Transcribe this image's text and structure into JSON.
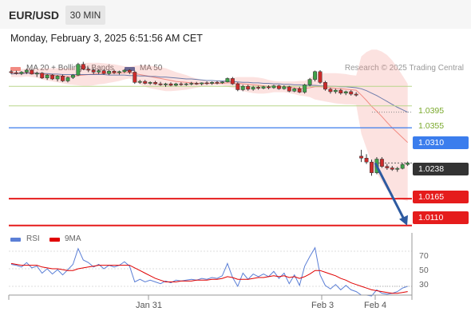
{
  "header": {
    "pair": "EUR/USD",
    "timeframe": "30 MIN",
    "datetime": "Monday, February 3, 2025 6:51:56 AM CET"
  },
  "legend": {
    "bollinger": "MA 20 + Bollinger Bands",
    "ma50": "MA 50",
    "credit": "Research © 2025 Trading Central",
    "rsi": "RSI",
    "rsi_ma": "9MA"
  },
  "colors": {
    "bollinger": "#f28b82",
    "ma50": "#3d5a99",
    "resistance_green": "#b8d68a",
    "support_blue": "#3b7ded",
    "support_red": "#e51c1c",
    "last_price": "#333333",
    "arrow": "#2d5aa0",
    "rsi": "#5b7fd6",
    "rsi_ma": "#e00000"
  },
  "chart_data": [
    {
      "type": "candlestick",
      "levels": [
        {
          "value": "1.0395",
          "style": "resistance"
        },
        {
          "value": "1.0355",
          "style": "resistance"
        },
        {
          "value": "1.0310",
          "style": "support-blue"
        },
        {
          "value": "1.0238",
          "style": "last-price"
        },
        {
          "value": "1.0165",
          "style": "support-red"
        },
        {
          "value": "1.0110",
          "style": "support-red"
        }
      ],
      "ylim": [
        1.0095,
        1.049
      ],
      "x_ticks": [
        "Jan 31",
        "Feb 3",
        "Feb 4"
      ],
      "candles": [
        [
          1.0425,
          1.0428,
          1.042,
          1.0423
        ],
        [
          1.0423,
          1.0427,
          1.0419,
          1.0421
        ],
        [
          1.0421,
          1.0426,
          1.0418,
          1.0424
        ],
        [
          1.0424,
          1.0431,
          1.042,
          1.0428
        ],
        [
          1.0428,
          1.043,
          1.0419,
          1.042
        ],
        [
          1.042,
          1.0425,
          1.0414,
          1.0422
        ],
        [
          1.0422,
          1.0424,
          1.041,
          1.0412
        ],
        [
          1.0412,
          1.042,
          1.0408,
          1.0418
        ],
        [
          1.0418,
          1.042,
          1.0408,
          1.041
        ],
        [
          1.041,
          1.0418,
          1.0405,
          1.0416
        ],
        [
          1.0416,
          1.0419,
          1.0404,
          1.0406
        ],
        [
          1.0406,
          1.0415,
          1.0403,
          1.0413
        ],
        [
          1.0413,
          1.042,
          1.041,
          1.0418
        ],
        [
          1.0418,
          1.0443,
          1.0416,
          1.044
        ],
        [
          1.044,
          1.0445,
          1.0428,
          1.043
        ],
        [
          1.043,
          1.0434,
          1.0424,
          1.0428
        ],
        [
          1.0428,
          1.0432,
          1.042,
          1.0424
        ],
        [
          1.0424,
          1.043,
          1.042,
          1.0427
        ],
        [
          1.0427,
          1.043,
          1.0419,
          1.0421
        ],
        [
          1.0421,
          1.0428,
          1.0418,
          1.0426
        ],
        [
          1.0426,
          1.0429,
          1.042,
          1.0423
        ],
        [
          1.0423,
          1.0427,
          1.0419,
          1.0425
        ],
        [
          1.0425,
          1.043,
          1.0422,
          1.0428
        ],
        [
          1.0428,
          1.043,
          1.042,
          1.0424
        ],
        [
          1.0424,
          1.0427,
          1.04,
          1.0403
        ],
        [
          1.0403,
          1.0408,
          1.04,
          1.0405
        ],
        [
          1.0405,
          1.0408,
          1.0399,
          1.0401
        ],
        [
          1.0401,
          1.0405,
          1.0398,
          1.0403
        ],
        [
          1.0403,
          1.0406,
          1.0398,
          1.04
        ],
        [
          1.04,
          1.0404,
          1.0396,
          1.0398
        ],
        [
          1.0398,
          1.0402,
          1.0394,
          1.04
        ],
        [
          1.04,
          1.0403,
          1.0395,
          1.0397
        ],
        [
          1.0397,
          1.0402,
          1.0395,
          1.04
        ],
        [
          1.04,
          1.0403,
          1.0396,
          1.0399
        ],
        [
          1.0399,
          1.0402,
          1.0396,
          1.04
        ],
        [
          1.04,
          1.0404,
          1.0397,
          1.0401
        ],
        [
          1.0401,
          1.0404,
          1.0398,
          1.04
        ],
        [
          1.04,
          1.0403,
          1.0397,
          1.0402
        ],
        [
          1.0402,
          1.0405,
          1.0398,
          1.0401
        ],
        [
          1.0401,
          1.0405,
          1.0398,
          1.0403
        ],
        [
          1.0403,
          1.0406,
          1.0399,
          1.0402
        ],
        [
          1.0402,
          1.0405,
          1.04,
          1.0404
        ],
        [
          1.0404,
          1.0413,
          1.0403,
          1.0411
        ],
        [
          1.0411,
          1.0414,
          1.0398,
          1.04
        ],
        [
          1.04,
          1.0403,
          1.0385,
          1.0388
        ],
        [
          1.0388,
          1.0398,
          1.0385,
          1.0395
        ],
        [
          1.0395,
          1.0398,
          1.0386,
          1.0389
        ],
        [
          1.0389,
          1.0396,
          1.0386,
          1.0393
        ],
        [
          1.0393,
          1.0396,
          1.0388,
          1.0391
        ],
        [
          1.0391,
          1.0396,
          1.0389,
          1.0394
        ],
        [
          1.0394,
          1.0397,
          1.0389,
          1.0392
        ],
        [
          1.0392,
          1.0398,
          1.039,
          1.0396
        ],
        [
          1.0396,
          1.0398,
          1.0388,
          1.039
        ],
        [
          1.039,
          1.0397,
          1.0388,
          1.0394
        ],
        [
          1.0394,
          1.0396,
          1.0383,
          1.0385
        ],
        [
          1.0385,
          1.0392,
          1.0383,
          1.039
        ],
        [
          1.039,
          1.0394,
          1.0381,
          1.0383
        ],
        [
          1.0383,
          1.04,
          1.038,
          1.0398
        ],
        [
          1.0398,
          1.0412,
          1.0395,
          1.0409
        ],
        [
          1.0409,
          1.0427,
          1.0405,
          1.0425
        ],
        [
          1.0425,
          1.0428,
          1.04,
          1.0403
        ],
        [
          1.0403,
          1.0406,
          1.0386,
          1.0389
        ],
        [
          1.0389,
          1.0392,
          1.038,
          1.0384
        ],
        [
          1.0384,
          1.039,
          1.038,
          1.0387
        ],
        [
          1.0387,
          1.039,
          1.0378,
          1.0381
        ],
        [
          1.0381,
          1.0386,
          1.0377,
          1.0384
        ],
        [
          1.0384,
          1.0387,
          1.0376,
          1.0379
        ],
        [
          1.0379,
          1.0383,
          1.0374,
          1.0377
        ],
        [
          1.0252,
          1.0265,
          1.024,
          1.0248
        ],
        [
          1.0248,
          1.0256,
          1.0236,
          1.024
        ],
        [
          1.024,
          1.0245,
          1.0212,
          1.0218
        ],
        [
          1.0218,
          1.025,
          1.0215,
          1.0246
        ],
        [
          1.0246,
          1.025,
          1.0228,
          1.0231
        ],
        [
          1.0231,
          1.0236,
          1.0224,
          1.0228
        ],
        [
          1.0228,
          1.0232,
          1.0222,
          1.0225
        ],
        [
          1.0225,
          1.023,
          1.022,
          1.0227
        ],
        [
          1.0227,
          1.0238,
          1.0225,
          1.0235
        ],
        [
          1.0235,
          1.0241,
          1.0232,
          1.0238
        ]
      ],
      "bb_mid": [
        1.0422,
        1.0422,
        1.0422,
        1.0423,
        1.0422,
        1.0422,
        1.042,
        1.0419,
        1.0418,
        1.0417,
        1.0416,
        1.0415,
        1.0415,
        1.0417,
        1.0418,
        1.0419,
        1.042,
        1.0421,
        1.0421,
        1.0422,
        1.0422,
        1.0422,
        1.0423,
        1.0423,
        1.0421,
        1.0419,
        1.0417,
        1.0415,
        1.0413,
        1.0411,
        1.0409,
        1.0407,
        1.0405,
        1.0404,
        1.0403,
        1.0402,
        1.0401,
        1.0401,
        1.0401,
        1.0401,
        1.0401,
        1.0401,
        1.0402,
        1.0402,
        1.0401,
        1.04,
        1.0399,
        1.0398,
        1.0397,
        1.0396,
        1.0395,
        1.0395,
        1.0394,
        1.0394,
        1.0393,
        1.0392,
        1.0391,
        1.0391,
        1.0392,
        1.0394,
        1.0394,
        1.0393,
        1.0392,
        1.0391,
        1.039,
        1.0389,
        1.0388,
        1.0387,
        1.0377,
        1.0366,
        1.0354,
        1.0344,
        1.0333,
        1.0321,
        1.031,
        1.03,
        1.029,
        1.028
      ],
      "bb_upper": [
        1.043,
        1.043,
        1.043,
        1.0431,
        1.0431,
        1.0431,
        1.0432,
        1.0432,
        1.0432,
        1.0432,
        1.0432,
        1.0432,
        1.0432,
        1.0438,
        1.0442,
        1.0443,
        1.0443,
        1.0443,
        1.0442,
        1.0441,
        1.044,
        1.0438,
        1.0436,
        1.0435,
        1.0437,
        1.0438,
        1.0438,
        1.0437,
        1.0436,
        1.0434,
        1.0432,
        1.0428,
        1.0424,
        1.0421,
        1.0418,
        1.0414,
        1.0411,
        1.0408,
        1.0406,
        1.0405,
        1.0405,
        1.0405,
        1.041,
        1.0412,
        1.0414,
        1.0414,
        1.0414,
        1.0414,
        1.0413,
        1.0411,
        1.0408,
        1.0406,
        1.0405,
        1.0405,
        1.0405,
        1.0405,
        1.0406,
        1.0406,
        1.0411,
        1.042,
        1.0422,
        1.0422,
        1.0422,
        1.0422,
        1.0421,
        1.042,
        1.0418,
        1.0417,
        1.0456,
        1.0465,
        1.047,
        1.047,
        1.0466,
        1.0459,
        1.0448,
        1.0433,
        1.0417,
        1.04
      ],
      "bb_lower": [
        1.0414,
        1.0414,
        1.0414,
        1.0415,
        1.0414,
        1.0413,
        1.0409,
        1.0407,
        1.0405,
        1.0403,
        1.0401,
        1.0399,
        1.0398,
        1.0397,
        1.0396,
        1.0396,
        1.0397,
        1.0399,
        1.04,
        1.0402,
        1.0404,
        1.0406,
        1.0409,
        1.0411,
        1.0405,
        1.0399,
        1.0394,
        1.0391,
        1.0389,
        1.0387,
        1.0385,
        1.0385,
        1.0386,
        1.0387,
        1.0388,
        1.039,
        1.0392,
        1.0394,
        1.0396,
        1.0397,
        1.0397,
        1.0397,
        1.0394,
        1.0392,
        1.0388,
        1.0385,
        1.0383,
        1.0381,
        1.038,
        1.038,
        1.0381,
        1.0383,
        1.0383,
        1.0383,
        1.0381,
        1.0379,
        1.0376,
        1.0375,
        1.0373,
        1.0368,
        1.0366,
        1.0364,
        1.0362,
        1.036,
        1.0359,
        1.0358,
        1.0358,
        1.0357,
        1.0298,
        1.0268,
        1.0238,
        1.0218,
        1.02,
        1.0183,
        1.0172,
        1.0167,
        1.0163,
        1.016
      ],
      "ma50": [
        1.042,
        1.0421,
        1.0421,
        1.0422,
        1.0422,
        1.0422,
        1.0421,
        1.0421,
        1.042,
        1.042,
        1.0419,
        1.0419,
        1.0419,
        1.0419,
        1.0419,
        1.0419,
        1.0419,
        1.0419,
        1.0419,
        1.0418,
        1.0418,
        1.0418,
        1.0418,
        1.0417,
        1.0417,
        1.0416,
        1.0416,
        1.0415,
        1.0415,
        1.0414,
        1.0414,
        1.0413,
        1.0412,
        1.0411,
        1.041,
        1.041,
        1.0409,
        1.0408,
        1.0407,
        1.0407,
        1.0406,
        1.0406,
        1.0405,
        1.0405,
        1.0404,
        1.0403,
        1.0403,
        1.0402,
        1.0402,
        1.0401,
        1.0401,
        1.04,
        1.04,
        1.0399,
        1.0399,
        1.0398,
        1.0398,
        1.0397,
        1.0397,
        1.0397,
        1.0396,
        1.0396,
        1.0395,
        1.0395,
        1.0394,
        1.0394,
        1.0393,
        1.0392,
        1.039,
        1.0386,
        1.0381,
        1.0376,
        1.037,
        1.0364,
        1.0358,
        1.0352,
        1.0347,
        1.0342
      ],
      "projection": {
        "from": 1.0238,
        "to": 1.011
      }
    },
    {
      "type": "line",
      "title": "RSI",
      "ylim": [
        20,
        80
      ],
      "ticks": [
        "70",
        "50",
        "30"
      ],
      "series": [
        {
          "name": "RSI",
          "values": [
            55,
            54,
            52,
            57,
            51,
            53,
            45,
            50,
            44,
            49,
            43,
            49,
            55,
            73,
            60,
            57,
            52,
            55,
            50,
            54,
            52,
            54,
            58,
            53,
            35,
            38,
            35,
            37,
            35,
            33,
            36,
            34,
            37,
            36,
            37,
            38,
            37,
            39,
            38,
            40,
            39,
            42,
            56,
            40,
            30,
            45,
            38,
            44,
            41,
            44,
            41,
            47,
            39,
            45,
            33,
            43,
            31,
            53,
            64,
            74,
            43,
            31,
            27,
            32,
            26,
            31,
            26,
            24,
            20,
            20,
            19,
            26,
            22,
            21,
            22,
            24,
            28,
            30
          ]
        },
        {
          "name": "9MA",
          "values": [
            56,
            55,
            54,
            54,
            54,
            54,
            52,
            51,
            50,
            50,
            49,
            48,
            48,
            50,
            51,
            52,
            53,
            54,
            54,
            54,
            54,
            54,
            54,
            54,
            51,
            48,
            45,
            42,
            39,
            37,
            35,
            35,
            35,
            36,
            36,
            36,
            37,
            37,
            37,
            38,
            38,
            39,
            41,
            40,
            38,
            38,
            38,
            39,
            40,
            40,
            41,
            42,
            41,
            42,
            40,
            41,
            39,
            41,
            44,
            48,
            48,
            46,
            44,
            42,
            39,
            37,
            34,
            32,
            30,
            28,
            26,
            25,
            24,
            23,
            22,
            22,
            23,
            24
          ]
        }
      ]
    }
  ]
}
